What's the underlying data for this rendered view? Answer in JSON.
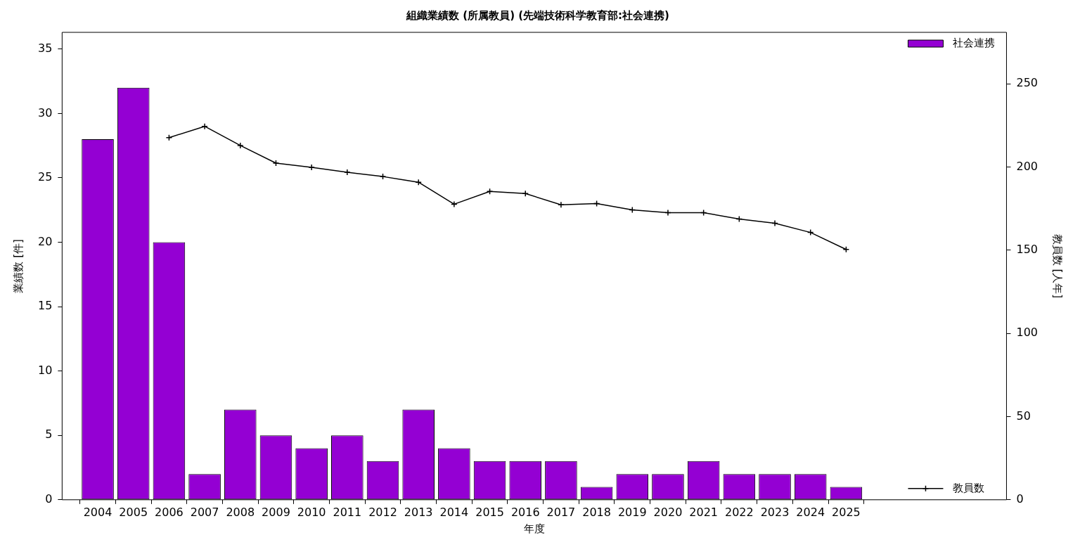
{
  "chart_data": {
    "type": "bar",
    "title": "組織業績数 (所属教員) (先端技術科学教育部:社会連携)",
    "xlabel": "年度",
    "ylabel": "業績数 [件]",
    "y2label": "教員数 [人年]",
    "x": [
      2004,
      2005,
      2006,
      2007,
      2008,
      2009,
      2010,
      2011,
      2012,
      2013,
      2014,
      2015,
      2016,
      2017,
      2018,
      2019,
      2020,
      2021,
      2022,
      2023,
      2024,
      2025
    ],
    "xlim": [
      2003,
      2029.5
    ],
    "xticks": [
      2004,
      2005,
      2006,
      2007,
      2008,
      2009,
      2010,
      2011,
      2012,
      2013,
      2014,
      2015,
      2016,
      2017,
      2018,
      2019,
      2020,
      2021,
      2022,
      2023,
      2024,
      2025
    ],
    "ylim": [
      0,
      36.3
    ],
    "yticks": [
      0,
      5,
      10,
      15,
      20,
      25,
      30,
      35
    ],
    "y2lim": [
      0,
      281
    ],
    "y2ticks": [
      0,
      50,
      100,
      150,
      200,
      250
    ],
    "series": [
      {
        "name": "社会連携",
        "color": "#9400d3",
        "values": [
          28,
          32,
          20,
          2,
          7,
          5,
          4,
          5,
          3,
          7,
          4,
          3,
          3,
          3,
          1,
          2,
          2,
          3,
          2,
          2,
          2,
          1
        ]
      },
      {
        "name": "教員数",
        "type": "line",
        "axis": "y2",
        "color": "#000000",
        "x": [
          2006,
          2007,
          2008,
          2009,
          2010,
          2011,
          2012,
          2013,
          2014,
          2015,
          2016,
          2017,
          2018,
          2019,
          2020,
          2021,
          2022,
          2023,
          2024,
          2025
        ],
        "values": [
          217.7,
          224.5,
          213,
          202.4,
          199.8,
          196.9,
          194.3,
          190.9,
          177.7,
          185.4,
          184.1,
          177.3,
          178.1,
          174.3,
          172.6,
          172.6,
          168.8,
          166.2,
          160.7,
          150.5
        ]
      }
    ],
    "marker": "cross",
    "line_style": "solid",
    "legend": "right",
    "grid": false
  }
}
